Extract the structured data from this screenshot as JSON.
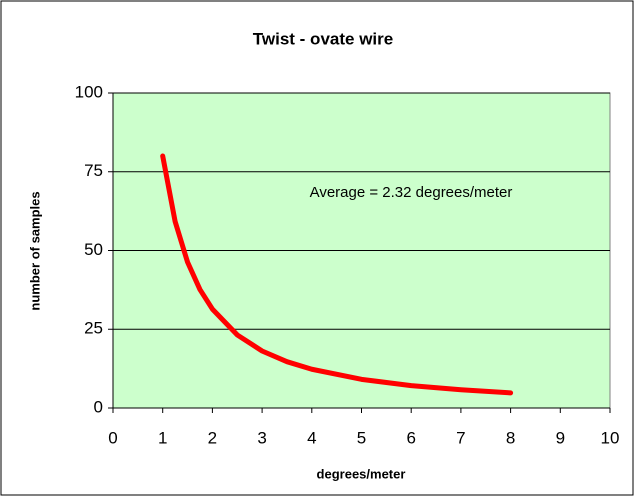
{
  "chart_data": {
    "type": "line",
    "title": "Twist - ovate wire",
    "x_label": "degrees/meter",
    "y_label": "number of samples",
    "annotation": "Average = 2.32 degrees/meter",
    "x": [
      1,
      1.25,
      1.5,
      1.75,
      2,
      2.5,
      3,
      3.5,
      4,
      5,
      6,
      7,
      8
    ],
    "series": [
      {
        "name": "Twist",
        "color": "#ff0000",
        "values": [
          80,
          59.2,
          46.3,
          37.6,
          31.4,
          23.2,
          18.1,
          14.7,
          12.3,
          9.1,
          7.1,
          5.8,
          4.8
        ]
      }
    ],
    "xlim": [
      0,
      10
    ],
    "xticks": [
      0,
      1,
      2,
      3,
      4,
      5,
      6,
      7,
      8,
      9,
      10
    ],
    "ylim": [
      0,
      100
    ],
    "yticks": [
      0,
      25,
      50,
      75,
      100
    ],
    "grid": true,
    "plot_background": "#ccffcc"
  }
}
